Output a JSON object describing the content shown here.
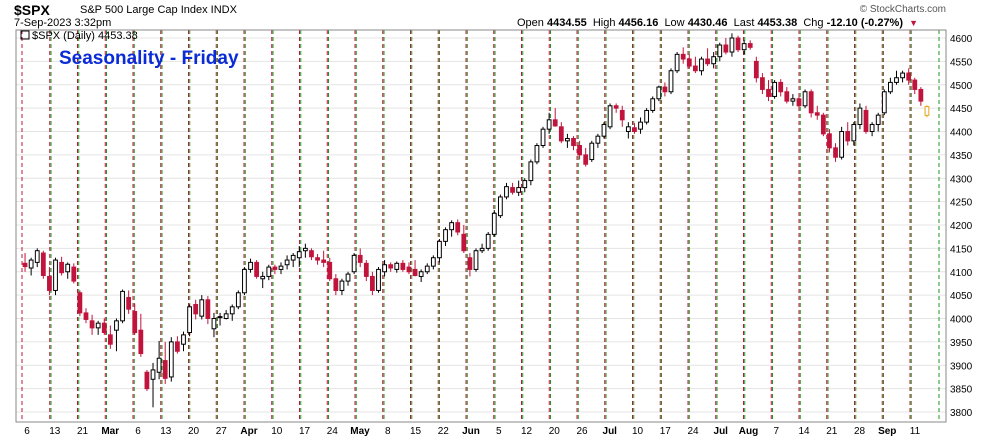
{
  "header": {
    "symbol": "$SPX",
    "description": "S&P 500 Large Cap Index  INDX",
    "date": "7-Sep-2023 3:32pm",
    "brand": "© StockCharts.com",
    "open_label": "Open",
    "open": "4434.55",
    "high_label": "High",
    "high": "4456.16",
    "low_label": "Low",
    "low": "4430.46",
    "last_label": "Last",
    "last": "4453.38",
    "chg_label": "Chg",
    "chg": "-12.10 (-0.27%)",
    "down_arrow": "▼"
  },
  "legend": "$SPX (Daily) 4453.38",
  "annotation": "Seasonality - Friday",
  "colors": {
    "up": "#000000",
    "down": "#c0143c",
    "current": "#e8a21a",
    "grid": "#e4e4e4",
    "friday_line": "#c0143c",
    "monday_line": "#1e9a1e",
    "annotation": "#0a2bd6"
  },
  "chart_data": {
    "type": "candlestick",
    "symbol": "$SPX",
    "y_axis": {
      "min": 3800,
      "max": 4600,
      "side": "right",
      "ticks": [
        3800,
        3850,
        3900,
        3950,
        4000,
        4050,
        4100,
        4150,
        4200,
        4250,
        4300,
        4350,
        4400,
        4450,
        4500,
        4550,
        4600
      ]
    },
    "x_axis": {
      "labels": [
        "6",
        "13",
        "21",
        "Mar",
        "6",
        "13",
        "20",
        "27",
        "Apr",
        "10",
        "17",
        "24",
        "May",
        "8",
        "15",
        "22",
        "Jun",
        "5",
        "12",
        "20",
        "26",
        "Jul",
        "10",
        "17",
        "24",
        "Jul",
        "Aug",
        "7",
        "14",
        "21",
        "28",
        "Sep",
        "11"
      ]
    },
    "candles": [
      {
        "o": 4118,
        "h": 4140,
        "l": 4100,
        "c": 4111
      },
      {
        "o": 4108,
        "h": 4130,
        "l": 4092,
        "c": 4125
      },
      {
        "o": 4120,
        "h": 4150,
        "l": 4110,
        "c": 4145
      },
      {
        "o": 4140,
        "h": 4145,
        "l": 4085,
        "c": 4092
      },
      {
        "o": 4090,
        "h": 4110,
        "l": 4050,
        "c": 4060
      },
      {
        "o": 4060,
        "h": 4130,
        "l": 4050,
        "c": 4125
      },
      {
        "o": 4120,
        "h": 4132,
        "l": 4092,
        "c": 4098
      },
      {
        "o": 4100,
        "h": 4120,
        "l": 4085,
        "c": 4116
      },
      {
        "o": 4110,
        "h": 4118,
        "l": 4075,
        "c": 4080
      },
      {
        "o": 4055,
        "h": 4060,
        "l": 4005,
        "c": 4012
      },
      {
        "o": 4012,
        "h": 4022,
        "l": 3990,
        "c": 3998
      },
      {
        "o": 3995,
        "h": 4008,
        "l": 3965,
        "c": 3980
      },
      {
        "o": 3980,
        "h": 3995,
        "l": 3965,
        "c": 3990
      },
      {
        "o": 3990,
        "h": 4000,
        "l": 3965,
        "c": 3970
      },
      {
        "o": 3965,
        "h": 3985,
        "l": 3935,
        "c": 3945
      },
      {
        "o": 3975,
        "h": 4000,
        "l": 3930,
        "c": 3995
      },
      {
        "o": 3995,
        "h": 4062,
        "l": 3990,
        "c": 4058
      },
      {
        "o": 4045,
        "h": 4060,
        "l": 4010,
        "c": 4020
      },
      {
        "o": 4015,
        "h": 4032,
        "l": 3965,
        "c": 3970
      },
      {
        "o": 3975,
        "h": 4010,
        "l": 3918,
        "c": 3925
      },
      {
        "o": 3885,
        "h": 3890,
        "l": 3845,
        "c": 3850
      },
      {
        "o": 3870,
        "h": 3905,
        "l": 3810,
        "c": 3890
      },
      {
        "o": 3885,
        "h": 3952,
        "l": 3870,
        "c": 3915
      },
      {
        "o": 3910,
        "h": 3950,
        "l": 3860,
        "c": 3872
      },
      {
        "o": 3875,
        "h": 3960,
        "l": 3865,
        "c": 3950
      },
      {
        "o": 3950,
        "h": 3962,
        "l": 3925,
        "c": 3930
      },
      {
        "o": 3945,
        "h": 3972,
        "l": 3930,
        "c": 3965
      },
      {
        "o": 3970,
        "h": 4030,
        "l": 3962,
        "c": 4025
      },
      {
        "o": 4030,
        "h": 4040,
        "l": 3998,
        "c": 4010
      },
      {
        "o": 4005,
        "h": 4050,
        "l": 3998,
        "c": 4040
      },
      {
        "o": 4040,
        "h": 4048,
        "l": 3988,
        "c": 4000
      },
      {
        "o": 3978,
        "h": 4012,
        "l": 3960,
        "c": 4000
      },
      {
        "o": 4002,
        "h": 4012,
        "l": 3985,
        "c": 4004
      },
      {
        "o": 4000,
        "h": 4018,
        "l": 3998,
        "c": 4010
      },
      {
        "o": 4010,
        "h": 4030,
        "l": 3995,
        "c": 4025
      },
      {
        "o": 4025,
        "h": 4060,
        "l": 4020,
        "c": 4055
      },
      {
        "o": 4055,
        "h": 4110,
        "l": 4050,
        "c": 4105
      },
      {
        "o": 4105,
        "h": 4128,
        "l": 4098,
        "c": 4120
      },
      {
        "o": 4120,
        "h": 4125,
        "l": 4085,
        "c": 4090
      },
      {
        "o": 4085,
        "h": 4100,
        "l": 4065,
        "c": 4090
      },
      {
        "o": 4090,
        "h": 4115,
        "l": 4082,
        "c": 4110
      },
      {
        "o": 4110,
        "h": 4115,
        "l": 4095,
        "c": 4105
      },
      {
        "o": 4105,
        "h": 4120,
        "l": 4095,
        "c": 4112
      },
      {
        "o": 4115,
        "h": 4135,
        "l": 4105,
        "c": 4125
      },
      {
        "o": 4125,
        "h": 4140,
        "l": 4110,
        "c": 4135
      },
      {
        "o": 4130,
        "h": 4155,
        "l": 4110,
        "c": 4143
      },
      {
        "o": 4145,
        "h": 4160,
        "l": 4130,
        "c": 4150
      },
      {
        "o": 4145,
        "h": 4150,
        "l": 4125,
        "c": 4132
      },
      {
        "o": 4130,
        "h": 4138,
        "l": 4115,
        "c": 4125
      },
      {
        "o": 4125,
        "h": 4145,
        "l": 4110,
        "c": 4120
      },
      {
        "o": 4120,
        "h": 4130,
        "l": 4080,
        "c": 4085
      },
      {
        "o": 4085,
        "h": 4095,
        "l": 4050,
        "c": 4060
      },
      {
        "o": 4060,
        "h": 4085,
        "l": 4050,
        "c": 4080
      },
      {
        "o": 4080,
        "h": 4100,
        "l": 4070,
        "c": 4095
      },
      {
        "o": 4100,
        "h": 4140,
        "l": 4095,
        "c": 4135
      },
      {
        "o": 4135,
        "h": 4150,
        "l": 4110,
        "c": 4120
      },
      {
        "o": 4118,
        "h": 4125,
        "l": 4080,
        "c": 4090
      },
      {
        "o": 4090,
        "h": 4100,
        "l": 4050,
        "c": 4060
      },
      {
        "o": 4060,
        "h": 4110,
        "l": 4055,
        "c": 4105
      },
      {
        "o": 4100,
        "h": 4125,
        "l": 4090,
        "c": 4115
      },
      {
        "o": 4115,
        "h": 4120,
        "l": 4100,
        "c": 4108
      },
      {
        "o": 4105,
        "h": 4122,
        "l": 4098,
        "c": 4118
      },
      {
        "o": 4118,
        "h": 4125,
        "l": 4100,
        "c": 4105
      },
      {
        "o": 4110,
        "h": 4120,
        "l": 4095,
        "c": 4100
      },
      {
        "o": 4105,
        "h": 4125,
        "l": 4090,
        "c": 4092
      },
      {
        "o": 4090,
        "h": 4105,
        "l": 4078,
        "c": 4100
      },
      {
        "o": 4100,
        "h": 4118,
        "l": 4095,
        "c": 4112
      },
      {
        "o": 4112,
        "h": 4135,
        "l": 4105,
        "c": 4130
      },
      {
        "o": 4130,
        "h": 4170,
        "l": 4120,
        "c": 4165
      },
      {
        "o": 4165,
        "h": 4195,
        "l": 4155,
        "c": 4190
      },
      {
        "o": 4190,
        "h": 4210,
        "l": 4175,
        "c": 4205
      },
      {
        "o": 4205,
        "h": 4212,
        "l": 4178,
        "c": 4185
      },
      {
        "o": 4180,
        "h": 4200,
        "l": 4140,
        "c": 4145
      },
      {
        "o": 4130,
        "h": 4140,
        "l": 4090,
        "c": 4105
      },
      {
        "o": 4105,
        "h": 4150,
        "l": 4100,
        "c": 4145
      },
      {
        "o": 4145,
        "h": 4160,
        "l": 4140,
        "c": 4150
      },
      {
        "o": 4150,
        "h": 4185,
        "l": 4145,
        "c": 4180
      },
      {
        "o": 4180,
        "h": 4232,
        "l": 4175,
        "c": 4225
      },
      {
        "o": 4220,
        "h": 4265,
        "l": 4215,
        "c": 4260
      },
      {
        "o": 4260,
        "h": 4290,
        "l": 4255,
        "c": 4282
      },
      {
        "o": 4280,
        "h": 4290,
        "l": 4265,
        "c": 4270
      },
      {
        "o": 4270,
        "h": 4295,
        "l": 4262,
        "c": 4280
      },
      {
        "o": 4280,
        "h": 4300,
        "l": 4270,
        "c": 4295
      },
      {
        "o": 4295,
        "h": 4340,
        "l": 4285,
        "c": 4335
      },
      {
        "o": 4335,
        "h": 4375,
        "l": 4330,
        "c": 4370
      },
      {
        "o": 4370,
        "h": 4410,
        "l": 4365,
        "c": 4405
      },
      {
        "o": 4405,
        "h": 4440,
        "l": 4395,
        "c": 4425
      },
      {
        "o": 4425,
        "h": 4450,
        "l": 4410,
        "c": 4412
      },
      {
        "o": 4410,
        "h": 4420,
        "l": 4375,
        "c": 4380
      },
      {
        "o": 4380,
        "h": 4395,
        "l": 4365,
        "c": 4385
      },
      {
        "o": 4385,
        "h": 4390,
        "l": 4360,
        "c": 4370
      },
      {
        "o": 4370,
        "h": 4380,
        "l": 4340,
        "c": 4350
      },
      {
        "o": 4350,
        "h": 4365,
        "l": 4325,
        "c": 4330
      },
      {
        "o": 4340,
        "h": 4380,
        "l": 4335,
        "c": 4375
      },
      {
        "o": 4375,
        "h": 4395,
        "l": 4365,
        "c": 4390
      },
      {
        "o": 4390,
        "h": 4420,
        "l": 4385,
        "c": 4415
      },
      {
        "o": 4410,
        "h": 4460,
        "l": 4405,
        "c": 4455
      },
      {
        "o": 4455,
        "h": 4460,
        "l": 4440,
        "c": 4450
      },
      {
        "o": 4445,
        "h": 4455,
        "l": 4410,
        "c": 4425
      },
      {
        "o": 4400,
        "h": 4420,
        "l": 4385,
        "c": 4410
      },
      {
        "o": 4408,
        "h": 4418,
        "l": 4395,
        "c": 4400
      },
      {
        "o": 4405,
        "h": 4430,
        "l": 4395,
        "c": 4420
      },
      {
        "o": 4420,
        "h": 4450,
        "l": 4415,
        "c": 4445
      },
      {
        "o": 4445,
        "h": 4475,
        "l": 4440,
        "c": 4470
      },
      {
        "o": 4470,
        "h": 4498,
        "l": 4465,
        "c": 4495
      },
      {
        "o": 4495,
        "h": 4505,
        "l": 4475,
        "c": 4485
      },
      {
        "o": 4485,
        "h": 4535,
        "l": 4480,
        "c": 4530
      },
      {
        "o": 4530,
        "h": 4570,
        "l": 4525,
        "c": 4565
      },
      {
        "o": 4565,
        "h": 4580,
        "l": 4545,
        "c": 4555
      },
      {
        "o": 4555,
        "h": 4565,
        "l": 4535,
        "c": 4540
      },
      {
        "o": 4540,
        "h": 4560,
        "l": 4525,
        "c": 4530
      },
      {
        "o": 4530,
        "h": 4560,
        "l": 4520,
        "c": 4555
      },
      {
        "o": 4555,
        "h": 4578,
        "l": 4540,
        "c": 4545
      },
      {
        "o": 4545,
        "h": 4570,
        "l": 4535,
        "c": 4560
      },
      {
        "o": 4560,
        "h": 4590,
        "l": 4550,
        "c": 4585
      },
      {
        "o": 4585,
        "h": 4600,
        "l": 4565,
        "c": 4570
      },
      {
        "o": 4570,
        "h": 4610,
        "l": 4560,
        "c": 4600
      },
      {
        "o": 4600,
        "h": 4605,
        "l": 4570,
        "c": 4575
      },
      {
        "o": 4575,
        "h": 4595,
        "l": 4565,
        "c": 4588
      },
      {
        "o": 4588,
        "h": 4595,
        "l": 4575,
        "c": 4580
      },
      {
        "o": 4550,
        "h": 4560,
        "l": 4505,
        "c": 4515
      },
      {
        "o": 4515,
        "h": 4525,
        "l": 4480,
        "c": 4490
      },
      {
        "o": 4490,
        "h": 4510,
        "l": 4465,
        "c": 4475
      },
      {
        "o": 4475,
        "h": 4510,
        "l": 4470,
        "c": 4505
      },
      {
        "o": 4505,
        "h": 4512,
        "l": 4475,
        "c": 4485
      },
      {
        "o": 4485,
        "h": 4495,
        "l": 4460,
        "c": 4465
      },
      {
        "o": 4465,
        "h": 4480,
        "l": 4455,
        "c": 4470
      },
      {
        "o": 4470,
        "h": 4480,
        "l": 4450,
        "c": 4455
      },
      {
        "o": 4455,
        "h": 4490,
        "l": 4450,
        "c": 4485
      },
      {
        "o": 4485,
        "h": 4490,
        "l": 4430,
        "c": 4440
      },
      {
        "o": 4440,
        "h": 4455,
        "l": 4425,
        "c": 4435
      },
      {
        "o": 4435,
        "h": 4440,
        "l": 4390,
        "c": 4395
      },
      {
        "o": 4395,
        "h": 4405,
        "l": 4355,
        "c": 4365
      },
      {
        "o": 4365,
        "h": 4375,
        "l": 4335,
        "c": 4345
      },
      {
        "o": 4345,
        "h": 4410,
        "l": 4340,
        "c": 4400
      },
      {
        "o": 4400,
        "h": 4420,
        "l": 4370,
        "c": 4380
      },
      {
        "o": 4380,
        "h": 4420,
        "l": 4370,
        "c": 4415
      },
      {
        "o": 4415,
        "h": 4460,
        "l": 4405,
        "c": 4450
      },
      {
        "o": 4445,
        "h": 4455,
        "l": 4395,
        "c": 4400
      },
      {
        "o": 4400,
        "h": 4420,
        "l": 4390,
        "c": 4415
      },
      {
        "o": 4415,
        "h": 4440,
        "l": 4400,
        "c": 4435
      },
      {
        "o": 4440,
        "h": 4490,
        "l": 4435,
        "c": 4485
      },
      {
        "o": 4485,
        "h": 4515,
        "l": 4480,
        "c": 4505
      },
      {
        "o": 4505,
        "h": 4530,
        "l": 4500,
        "c": 4515
      },
      {
        "o": 4515,
        "h": 4530,
        "l": 4505,
        "c": 4525
      },
      {
        "o": 4525,
        "h": 4535,
        "l": 4500,
        "c": 4510
      },
      {
        "o": 4510,
        "h": 4515,
        "l": 4480,
        "c": 4490
      },
      {
        "o": 4490,
        "h": 4495,
        "l": 4455,
        "c": 4465
      },
      {
        "o": 4434.55,
        "h": 4456.16,
        "l": 4430.46,
        "c": 4453.38,
        "current": true
      }
    ]
  }
}
